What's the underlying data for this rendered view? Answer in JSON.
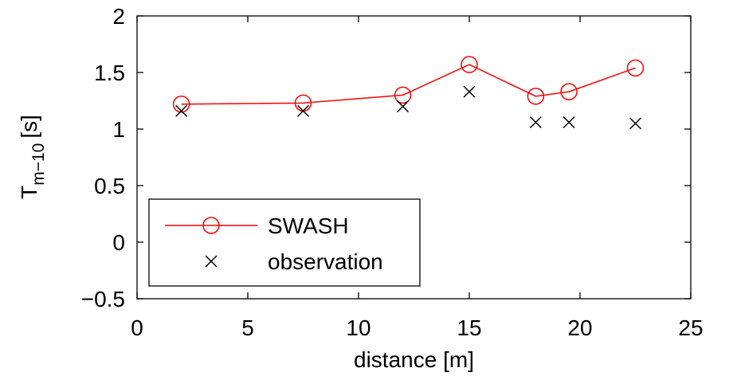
{
  "chart_data": {
    "type": "line",
    "title": "",
    "xlabel": "distance [m]",
    "ylabel_main": "T",
    "ylabel_sub": "m−10",
    "ylabel_unit": "[s]",
    "xlim": [
      0,
      25
    ],
    "ylim": [
      -0.5,
      2
    ],
    "xticks": [
      0,
      5,
      10,
      15,
      20,
      25
    ],
    "xtick_labels": [
      "0",
      "5",
      "10",
      "15",
      "20",
      "25"
    ],
    "yticks": [
      -0.5,
      0,
      0.5,
      1,
      1.5,
      2
    ],
    "ytick_labels": [
      "−0.5",
      "0",
      "0.5",
      "1",
      "1.5",
      "2"
    ],
    "grid": false,
    "legend_position": "bottom-left",
    "series": [
      {
        "name": "SWASH",
        "marker": "circle",
        "line": true,
        "color": "#ff0000",
        "x": [
          2,
          7.5,
          12,
          15,
          18,
          19.5,
          22.5
        ],
        "y": [
          1.22,
          1.23,
          1.3,
          1.57,
          1.29,
          1.33,
          1.54
        ]
      },
      {
        "name": "observation",
        "marker": "x",
        "line": false,
        "color": "#000000",
        "x": [
          2,
          7.5,
          12,
          15,
          18,
          19.5,
          22.5
        ],
        "y": [
          1.16,
          1.16,
          1.2,
          1.33,
          1.06,
          1.06,
          1.05
        ]
      }
    ]
  }
}
